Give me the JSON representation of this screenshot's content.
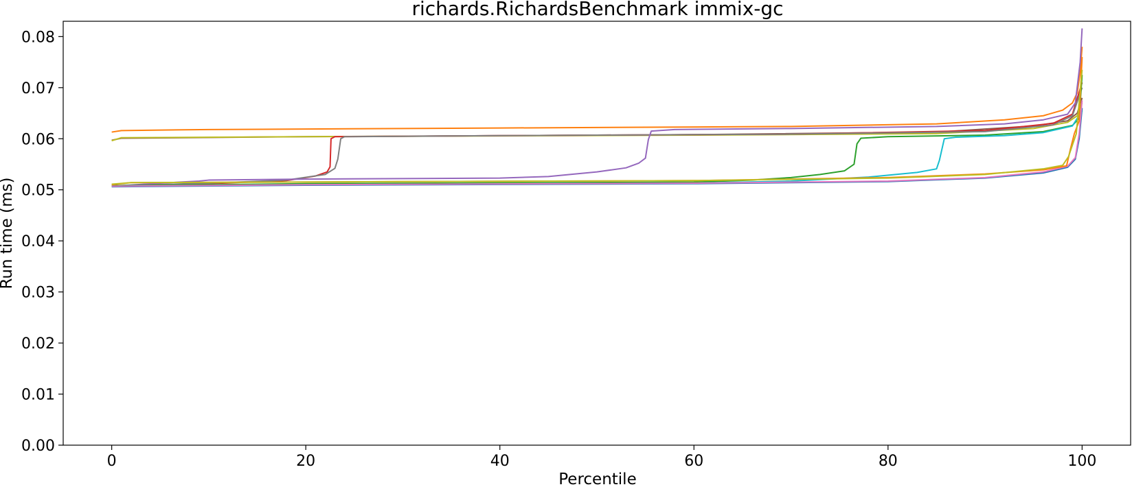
{
  "chart_data": {
    "type": "line",
    "title": "richards.RichardsBenchmark immix-gc",
    "xlabel": "Percentile",
    "ylabel": "Run time (ms)",
    "xlim": [
      -5,
      105
    ],
    "ylim": [
      0,
      0.083
    ],
    "xticks": [
      0,
      20,
      40,
      60,
      80,
      100
    ],
    "xtick_labels": [
      "0",
      "20",
      "40",
      "60",
      "80",
      "100"
    ],
    "yticks": [
      0,
      0.01,
      0.02,
      0.03,
      0.04,
      0.05,
      0.06,
      0.07,
      0.08
    ],
    "ytick_labels": [
      "0.00",
      "0.01",
      "0.02",
      "0.03",
      "0.04",
      "0.05",
      "0.06",
      "0.07",
      "0.08"
    ],
    "grid": false,
    "legend": false,
    "series": [
      {
        "color": "#ff7f0e",
        "points": [
          [
            0,
            0.0613
          ],
          [
            1,
            0.0616
          ],
          [
            10,
            0.0618
          ],
          [
            40,
            0.0621
          ],
          [
            70,
            0.0624
          ],
          [
            85,
            0.0629
          ],
          [
            92,
            0.0637
          ],
          [
            96,
            0.0645
          ],
          [
            98,
            0.0656
          ],
          [
            99,
            0.067
          ],
          [
            99.5,
            0.069
          ],
          [
            99.8,
            0.073
          ],
          [
            100,
            0.078
          ]
        ]
      },
      {
        "color": "#8c564b",
        "points": [
          [
            0,
            0.0597
          ],
          [
            1,
            0.0601
          ],
          [
            20,
            0.0604
          ],
          [
            60,
            0.0608
          ],
          [
            85,
            0.0613
          ],
          [
            95,
            0.0625
          ],
          [
            98.5,
            0.0635
          ],
          [
            99.5,
            0.065
          ],
          [
            100,
            0.068
          ]
        ]
      },
      {
        "color": "#bcbd22",
        "points": [
          [
            0,
            0.0596
          ],
          [
            1,
            0.0602
          ],
          [
            20,
            0.0604
          ],
          [
            60,
            0.0607
          ],
          [
            85,
            0.061
          ],
          [
            95,
            0.062
          ],
          [
            98.5,
            0.0632
          ],
          [
            99.5,
            0.0645
          ],
          [
            100,
            0.067
          ]
        ]
      },
      {
        "color": "#d62728",
        "points": [
          [
            0,
            0.0508
          ],
          [
            10,
            0.0512
          ],
          [
            18,
            0.0518
          ],
          [
            21,
            0.0527
          ],
          [
            22.2,
            0.0535
          ],
          [
            22.5,
            0.0545
          ],
          [
            22.6,
            0.06
          ],
          [
            23,
            0.0604
          ],
          [
            40,
            0.0606
          ],
          [
            70,
            0.0609
          ],
          [
            90,
            0.0616
          ],
          [
            97,
            0.063
          ],
          [
            99,
            0.0648
          ],
          [
            100,
            0.071
          ]
        ]
      },
      {
        "color": "#7f7f7f",
        "points": [
          [
            0,
            0.0508
          ],
          [
            10,
            0.0513
          ],
          [
            18,
            0.0519
          ],
          [
            22,
            0.053
          ],
          [
            23,
            0.0542
          ],
          [
            23.3,
            0.056
          ],
          [
            23.6,
            0.06
          ],
          [
            24,
            0.0604
          ],
          [
            40,
            0.0606
          ],
          [
            70,
            0.0609
          ],
          [
            90,
            0.0614
          ],
          [
            97,
            0.0627
          ],
          [
            99,
            0.0645
          ],
          [
            100,
            0.07
          ]
        ]
      },
      {
        "color": "#9467bd",
        "points": [
          [
            0,
            0.0507
          ],
          [
            5,
            0.0513
          ],
          [
            9,
            0.0517
          ],
          [
            10,
            0.0519
          ],
          [
            20,
            0.0521
          ],
          [
            40,
            0.0523
          ],
          [
            45,
            0.0526
          ],
          [
            50,
            0.0535
          ],
          [
            53,
            0.0543
          ],
          [
            54.3,
            0.0552
          ],
          [
            55,
            0.0562
          ],
          [
            55.3,
            0.0598
          ],
          [
            55.6,
            0.0615
          ],
          [
            58,
            0.0618
          ],
          [
            70,
            0.062
          ],
          [
            85,
            0.0624
          ],
          [
            92,
            0.0629
          ],
          [
            96,
            0.0637
          ],
          [
            98.5,
            0.0648
          ],
          [
            99.3,
            0.067
          ],
          [
            99.8,
            0.075
          ],
          [
            100,
            0.0816
          ]
        ]
      },
      {
        "color": "#2ca02c",
        "points": [
          [
            0,
            0.0508
          ],
          [
            20,
            0.0512
          ],
          [
            60,
            0.0515
          ],
          [
            66,
            0.0519
          ],
          [
            70,
            0.0524
          ],
          [
            73,
            0.053
          ],
          [
            75.5,
            0.0537
          ],
          [
            76.5,
            0.055
          ],
          [
            76.8,
            0.059
          ],
          [
            77.2,
            0.0601
          ],
          [
            80,
            0.0604
          ],
          [
            90,
            0.0607
          ],
          [
            96,
            0.0614
          ],
          [
            99,
            0.0626
          ],
          [
            99.7,
            0.064
          ],
          [
            100,
            0.0725
          ]
        ]
      },
      {
        "color": "#17becf",
        "points": [
          [
            0,
            0.0507
          ],
          [
            20,
            0.051
          ],
          [
            60,
            0.0513
          ],
          [
            70,
            0.0517
          ],
          [
            78,
            0.0525
          ],
          [
            83,
            0.0534
          ],
          [
            85,
            0.0541
          ],
          [
            85.3,
            0.0558
          ],
          [
            85.5,
            0.0575
          ],
          [
            85.8,
            0.06
          ],
          [
            87,
            0.0603
          ],
          [
            92,
            0.0606
          ],
          [
            96,
            0.0612
          ],
          [
            99,
            0.0625
          ],
          [
            100,
            0.0655
          ]
        ]
      },
      {
        "color": "#1f77b4",
        "points": [
          [
            0,
            0.0506
          ],
          [
            20,
            0.0509
          ],
          [
            60,
            0.0512
          ],
          [
            80,
            0.0516
          ],
          [
            90,
            0.0523
          ],
          [
            96,
            0.0533
          ],
          [
            98.5,
            0.0544
          ],
          [
            99.3,
            0.056
          ],
          [
            99.7,
            0.06
          ],
          [
            100,
            0.066
          ]
        ]
      },
      {
        "color": "#e377c2",
        "points": [
          [
            0,
            0.0507
          ],
          [
            20,
            0.051
          ],
          [
            60,
            0.0513
          ],
          [
            80,
            0.0517
          ],
          [
            90,
            0.0524
          ],
          [
            96,
            0.0535
          ],
          [
            98.5,
            0.0546
          ],
          [
            99.3,
            0.0563
          ],
          [
            99.7,
            0.061
          ],
          [
            100,
            0.0675
          ]
        ]
      },
      {
        "color": "#ff7f0e",
        "points": [
          [
            0,
            0.051
          ],
          [
            2,
            0.0514
          ],
          [
            30,
            0.0516
          ],
          [
            60,
            0.0518
          ],
          [
            80,
            0.0524
          ],
          [
            90,
            0.0531
          ],
          [
            96,
            0.0539
          ],
          [
            98.4,
            0.0547
          ],
          [
            98.8,
            0.058
          ],
          [
            99.2,
            0.061
          ],
          [
            99.7,
            0.0635
          ],
          [
            100,
            0.076
          ]
        ]
      },
      {
        "color": "#bcbd22",
        "points": [
          [
            0,
            0.0511
          ],
          [
            2,
            0.0514
          ],
          [
            30,
            0.0516
          ],
          [
            60,
            0.0518
          ],
          [
            80,
            0.0523
          ],
          [
            90,
            0.053
          ],
          [
            96,
            0.0541
          ],
          [
            98,
            0.0548
          ],
          [
            98.6,
            0.0565
          ],
          [
            99.4,
            0.061
          ],
          [
            100,
            0.0735
          ]
        ]
      }
    ]
  }
}
